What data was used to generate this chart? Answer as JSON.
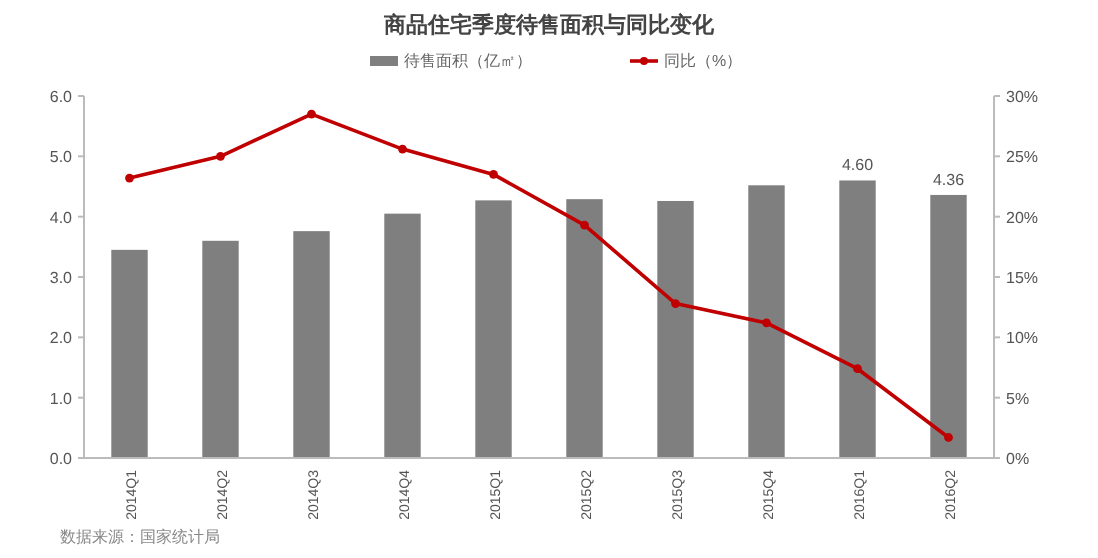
{
  "chart_data": {
    "type": "bar",
    "title": "商品住宅季度待售面积与同比变化",
    "categories": [
      "2014Q1",
      "2014Q2",
      "2014Q3",
      "2014Q4",
      "2015Q1",
      "2015Q2",
      "2015Q3",
      "2015Q4",
      "2016Q1",
      "2016Q2"
    ],
    "series": [
      {
        "name": "待售面积（亿㎡）",
        "color": "#7f7f7f",
        "values": [
          3.45,
          3.6,
          3.76,
          4.05,
          4.27,
          4.29,
          4.26,
          4.52,
          4.6,
          4.36
        ],
        "value_labels": [
          null,
          null,
          null,
          null,
          null,
          null,
          null,
          null,
          "4.60",
          "4.36"
        ]
      },
      {
        "name": "同比（%）",
        "type": "line",
        "axis": "y2",
        "color": "#c00000",
        "values": [
          23.2,
          25.0,
          28.5,
          25.6,
          23.5,
          19.3,
          12.8,
          11.2,
          7.4,
          1.7
        ]
      }
    ],
    "ylim": [
      0,
      6
    ],
    "yticks": [
      {
        "value": 0,
        "label": "0.0"
      },
      {
        "value": 1,
        "label": "1.0"
      },
      {
        "value": 2,
        "label": "2.0"
      },
      {
        "value": 3,
        "label": "3.0"
      },
      {
        "value": 4,
        "label": "4.0"
      },
      {
        "value": 5,
        "label": "5.0"
      },
      {
        "value": 6,
        "label": "6.0"
      }
    ],
    "y2lim": [
      0,
      30
    ],
    "y2ticks": [
      {
        "value": 0,
        "label": "0%"
      },
      {
        "value": 5,
        "label": "5%"
      },
      {
        "value": 10,
        "label": "10%"
      },
      {
        "value": 15,
        "label": "15%"
      },
      {
        "value": 20,
        "label": "20%"
      },
      {
        "value": 25,
        "label": "25%"
      },
      {
        "value": 30,
        "label": "30%"
      }
    ],
    "legend": "top",
    "marker": "circle",
    "line_style": "solid",
    "grid": false,
    "annotations": [
      "数据来源：国家统计局"
    ]
  }
}
